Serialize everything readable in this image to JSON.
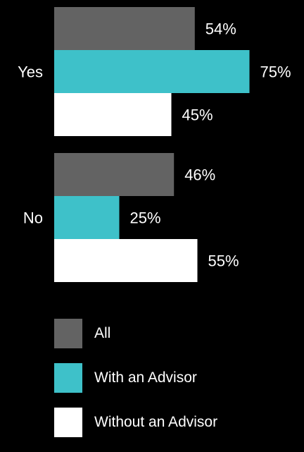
{
  "chart_data": {
    "type": "bar",
    "orientation": "horizontal",
    "categories": [
      "Yes",
      "No"
    ],
    "series": [
      {
        "name": "All",
        "values": [
          54,
          46
        ],
        "labels": [
          "54%",
          "46%"
        ],
        "color": "#636363"
      },
      {
        "name": "With an Advisor",
        "values": [
          75,
          25
        ],
        "labels": [
          "75%",
          "25%"
        ],
        "color": "#3ec1c9"
      },
      {
        "name": "Without an Advisor",
        "values": [
          45,
          55
        ],
        "labels": [
          "45%",
          "55%"
        ],
        "color": "#ffffff"
      }
    ],
    "value_unit": "%",
    "title": "",
    "xlabel": "",
    "ylabel": "",
    "xlim": [
      0,
      100
    ],
    "grid": false,
    "legend_position": "bottom"
  },
  "colors": {
    "background": "#000000",
    "text": "#ffffff"
  }
}
